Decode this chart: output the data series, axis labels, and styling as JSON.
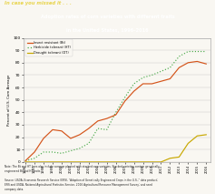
{
  "title_banner": "In case you missed it . . .",
  "title_line1": "Adoption rates of corn varieties with different traits",
  "title_line2": "in the United States, 1996–2016",
  "ylabel": "Percent of U.S. Corn Acreage",
  "ylim": [
    0,
    100
  ],
  "years": [
    1996,
    1997,
    1998,
    1999,
    2000,
    2001,
    2002,
    2003,
    2004,
    2005,
    2006,
    2007,
    2008,
    2009,
    2010,
    2011,
    2012,
    2013,
    2014,
    2015,
    2016
  ],
  "insect_resistant": [
    1,
    8,
    19,
    26,
    25,
    19,
    22,
    27,
    33,
    35,
    38,
    49,
    57,
    63,
    63,
    65,
    67,
    76,
    80,
    81,
    79
  ],
  "herbicide_tolerant": [
    1,
    3,
    8,
    8,
    7,
    9,
    11,
    15,
    27,
    26,
    40,
    52,
    63,
    68,
    70,
    73,
    76,
    85,
    89,
    89,
    89
  ],
  "drought_tolerant": [
    0,
    0,
    0,
    0,
    0,
    0,
    0,
    0,
    0,
    0,
    0,
    0,
    0,
    0,
    0,
    0,
    3,
    4,
    15,
    21,
    22
  ],
  "color_insect": "#d4541a",
  "color_herbicide": "#4aaa4a",
  "color_drought": "#c8a800",
  "banner_bg": "#1e3a5f",
  "banner_text_color": "#e8d44d",
  "chart_bg": "#f9f7f2",
  "note_text": "Note: The Bt and HT lines also include acreage planted with stacked corn varieties. Stacked varieties contain genetically\nengineered Bt and HT traits.",
  "source_text": "Source: USDA, Economic Research Service (ERS), “Adoption of Genetically Engineered Crops in the U.S.,” data product;\nERS and USDA, National Agricultural Statistics Service, 2016 Agricultural Resource Management Survey; and seed\ncompany data."
}
